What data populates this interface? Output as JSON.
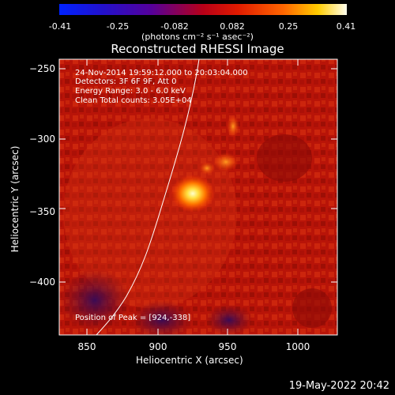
{
  "colorbar": {
    "ticks": [
      "-0.41",
      "-0.25",
      "-0.082",
      "0.082",
      "0.25",
      "0.41"
    ],
    "units": "(photons cm⁻² s⁻¹ asec⁻²)"
  },
  "plot": {
    "title": "Reconstructed RHESSI Image",
    "xlabel": "Heliocentric X (arcsec)",
    "ylabel": "Heliocentric Y (arcsec)",
    "xticks": [
      "850",
      "900",
      "950",
      "1000"
    ],
    "yticks": [
      "−250",
      "−300",
      "−350",
      "−400"
    ],
    "info": {
      "line1": "24-Nov-2014 19:59:12.000 to 20:03:04.000",
      "line2": "Detectors: 3F 6F 9F, Att 0",
      "line3": "Energy Range: 3.0 - 6.0 keV",
      "line4": "Clean    Total counts: 3.05E+04"
    },
    "peak": "Position of Peak = [924,-338]"
  },
  "footer": {
    "timestamp": "19-May-2022 20:42"
  }
}
